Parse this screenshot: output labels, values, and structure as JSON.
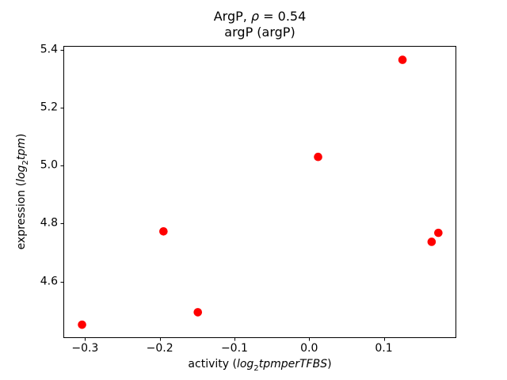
{
  "figure": {
    "title_line1": {
      "prefix": "ArgP, ",
      "rho": "ρ",
      "suffix": " = 0.54"
    },
    "title_line2": "argP (argP)",
    "xlabel": {
      "prefix": "activity (",
      "math_base": "log",
      "math_sub": "2",
      "math_rest": "tpmperTFBS",
      "suffix": ")"
    },
    "ylabel": {
      "prefix": "expression (",
      "math_base": "log",
      "math_sub": "2",
      "math_rest": "tpm",
      "suffix": ")"
    }
  },
  "chart_data": {
    "type": "scatter",
    "title": "ArgP, ρ = 0.54",
    "subtitle": "argP (argP)",
    "xlabel": "activity (log₂ tpm per TFBS)",
    "ylabel": "expression (log₂ tpm)",
    "marker": {
      "shape": "circle",
      "color": "#ff0000",
      "radius_px": 5.3
    },
    "xlim": [
      -0.329,
      0.197
    ],
    "ylim": [
      4.405,
      5.413
    ],
    "grid": false,
    "legend": null,
    "x_ticks": {
      "values": [
        -0.3,
        -0.2,
        -0.1,
        0.0,
        0.1
      ],
      "labels": [
        "−0.3",
        "−0.2",
        "−0.1",
        "0.0",
        "0.1"
      ]
    },
    "y_ticks": {
      "values": [
        4.6,
        4.8,
        5.0,
        5.2,
        5.4
      ],
      "labels": [
        "4.6",
        "4.8",
        "5.0",
        "5.2",
        "5.4"
      ]
    },
    "points": [
      {
        "x": -0.304,
        "y": 4.451
      },
      {
        "x": -0.195,
        "y": 4.773
      },
      {
        "x": -0.149,
        "y": 4.494
      },
      {
        "x": 0.012,
        "y": 5.03
      },
      {
        "x": 0.125,
        "y": 5.365
      },
      {
        "x": 0.164,
        "y": 4.737
      },
      {
        "x": 0.173,
        "y": 4.768
      }
    ]
  }
}
